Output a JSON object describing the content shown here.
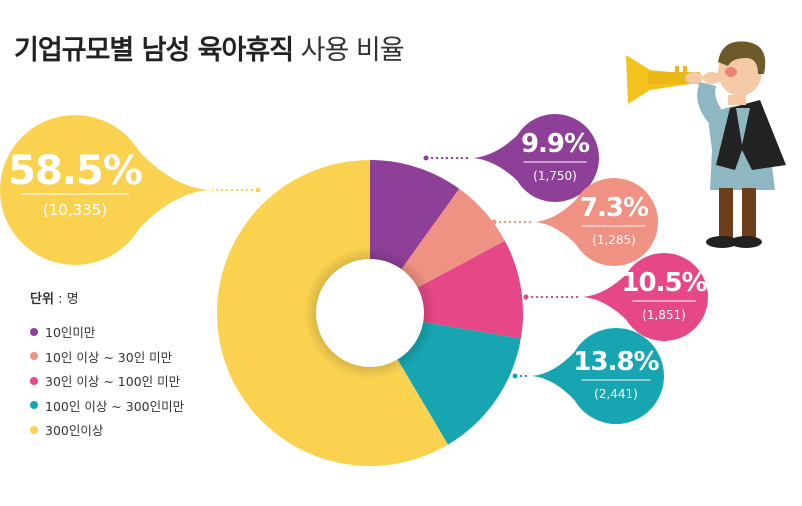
{
  "title": {
    "bold": "기업규모별 남성 육아휴직",
    "light": "사용 비율"
  },
  "unit_label": "단위",
  "unit_value": ": 명",
  "chart_data": {
    "type": "pie",
    "categories": [
      "10인미만",
      "10인 이상 ~ 30인 미만",
      "30인 이상 ~ 100인 미만",
      "100인 이상 ~ 300인미만",
      "300인이상"
    ],
    "values": [
      1750,
      1285,
      1851,
      2441,
      10335
    ],
    "percent_labels": [
      "9.9%",
      "7.3%",
      "10.5%",
      "13.8%",
      "58.5%"
    ],
    "count_labels": [
      "(1,750)",
      "(1,285)",
      "(1,851)",
      "(2,441)",
      "(10,335)"
    ],
    "colors": [
      "#8e3f97",
      "#ef9283",
      "#e64787",
      "#16a5b1",
      "#fad250"
    ],
    "legend_placement": "left",
    "donut": true
  }
}
